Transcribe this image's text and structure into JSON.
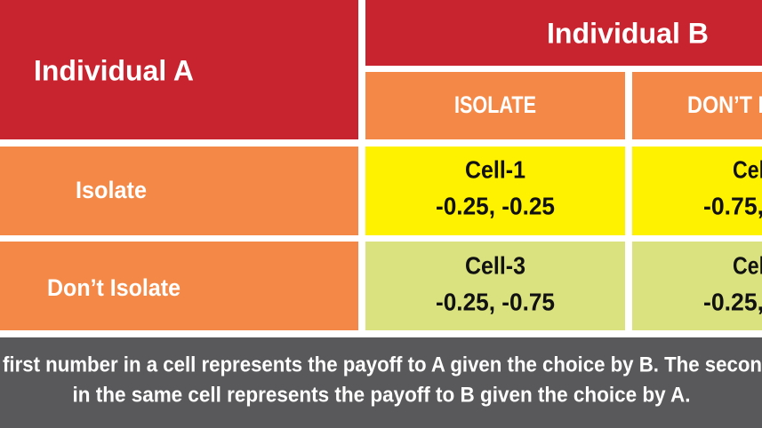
{
  "header": {
    "row_player": "Individual A",
    "column_player": "Individual B",
    "columns": [
      "ISOLATE",
      "DON’T I"
    ]
  },
  "rows": [
    {
      "label": "Isolate",
      "cells": [
        {
          "name": "Cell-1",
          "payoff": "-0.25, -0.25"
        },
        {
          "name": "Cel",
          "payoff": "-0.75,"
        }
      ]
    },
    {
      "label": "Don’t Isolate",
      "cells": [
        {
          "name": "Cell-3",
          "payoff": "-0.25, -0.75"
        },
        {
          "name": "Cel",
          "payoff": "-0.25,"
        }
      ]
    }
  ],
  "caption": [
    "first number in a cell represents the payoff to A given the choice by B. The secon",
    "in the same cell represents the payoff to B given the choice by A."
  ]
}
